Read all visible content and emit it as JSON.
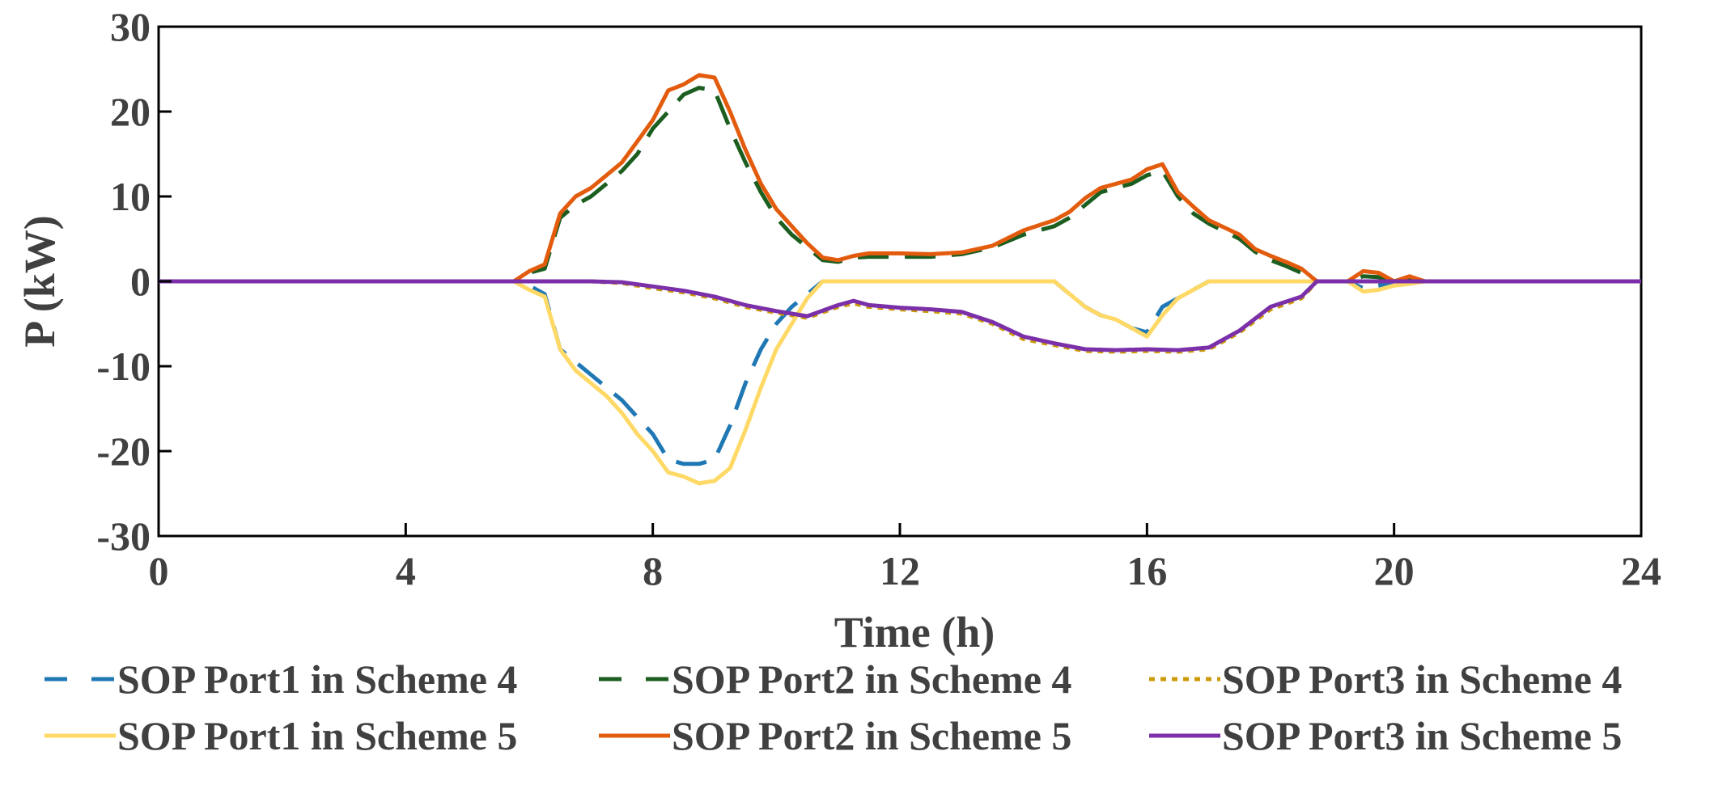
{
  "chart_data": {
    "type": "line",
    "xlabel": "Time (h)",
    "ylabel": "P (kW)",
    "xlim": [
      0,
      24
    ],
    "ylim": [
      -30,
      30
    ],
    "xticks": [
      0,
      4,
      8,
      12,
      16,
      20,
      24
    ],
    "yticks": [
      30,
      20,
      10,
      0,
      -10,
      -20,
      -30
    ],
    "xtick_labels": [
      "0",
      "4",
      "8",
      "12",
      "16",
      "20",
      "24"
    ],
    "ytick_labels": [
      "30",
      "20",
      "10",
      "0",
      "-10",
      "-20",
      "-30"
    ],
    "grid": false,
    "legend_position": "bottom",
    "series": [
      {
        "name": "SOP Port1 in Scheme 4",
        "color": "#1f78b4",
        "dash": "long-dash",
        "x": [
          0,
          5.75,
          6,
          6.25,
          6.5,
          6.75,
          7,
          7.25,
          7.5,
          7.75,
          8,
          8.25,
          8.5,
          8.75,
          9,
          9.25,
          9.5,
          9.75,
          10,
          10.25,
          10.5,
          10.75,
          11,
          12,
          13,
          14,
          14.5,
          14.75,
          15,
          15.25,
          15.5,
          15.75,
          16,
          16.25,
          16.5,
          16.75,
          17,
          18,
          19,
          19.25,
          19.5,
          19.75,
          20,
          20.25,
          20.5,
          24
        ],
        "y": [
          0,
          0,
          -0.5,
          -1.5,
          -8,
          -9.5,
          -11,
          -12.5,
          -14,
          -16,
          -18,
          -21,
          -21.5,
          -21.5,
          -21,
          -17,
          -12,
          -8,
          -5,
          -3,
          -1.5,
          0,
          0,
          0,
          0,
          0,
          0,
          -1.5,
          -3,
          -4,
          -4.5,
          -5.5,
          -6,
          -3,
          -2,
          -1,
          0,
          0,
          0,
          0,
          -0.8,
          -0.5,
          0,
          0,
          0,
          0
        ]
      },
      {
        "name": "SOP Port2 in Scheme 4",
        "color": "#1b5e20",
        "dash": "long-dash",
        "x": [
          0,
          5.75,
          6,
          6.25,
          6.5,
          6.75,
          7,
          7.25,
          7.5,
          7.75,
          8,
          8.25,
          8.5,
          8.75,
          9,
          9.25,
          9.5,
          9.75,
          10,
          10.25,
          10.5,
          10.75,
          11,
          11.25,
          11.5,
          12,
          12.5,
          13,
          13.5,
          14,
          14.5,
          14.75,
          15,
          15.25,
          15.5,
          15.75,
          16,
          16.25,
          16.5,
          16.75,
          17,
          17.5,
          17.75,
          18,
          18.25,
          18.5,
          18.75,
          19,
          19.25,
          19.5,
          19.75,
          20,
          20.25,
          20.5,
          24
        ],
        "y": [
          0,
          0,
          1,
          1.5,
          7.5,
          9,
          10,
          11.5,
          13,
          15,
          18,
          20,
          22,
          22.8,
          22.5,
          18,
          14,
          10.5,
          7.5,
          5.5,
          4,
          2.5,
          2.3,
          2.8,
          2.9,
          2.9,
          2.9,
          3.2,
          4,
          5.5,
          6.5,
          7.5,
          9,
          10.5,
          11,
          11.5,
          12.5,
          13,
          10,
          8,
          6.8,
          5,
          3.5,
          2.5,
          1.8,
          1,
          0,
          0,
          0,
          0.6,
          0.5,
          0,
          0.3,
          0,
          0
        ]
      },
      {
        "name": "SOP Port3 in Scheme 4",
        "color": "#cc9a06",
        "dash": "dotted",
        "x": [
          0,
          5.75,
          6,
          7,
          7.5,
          8,
          8.5,
          9,
          9.5,
          10,
          10.5,
          11,
          11.25,
          11.5,
          12,
          12.5,
          13,
          13.5,
          14,
          14.5,
          15,
          15.5,
          16,
          16.5,
          17,
          17.5,
          18,
          18.5,
          18.75,
          24
        ],
        "y": [
          0,
          0,
          0,
          0,
          -0.2,
          -0.8,
          -1.3,
          -2,
          -3,
          -3.7,
          -4.3,
          -3,
          -2.6,
          -3,
          -3.3,
          -3.5,
          -3.8,
          -5,
          -6.8,
          -7.5,
          -8.2,
          -8.3,
          -8.2,
          -8.3,
          -8,
          -6,
          -3.3,
          -2,
          0,
          0
        ]
      },
      {
        "name": "SOP Port1 in Scheme 5",
        "color": "#ffd966",
        "dash": "solid",
        "x": [
          0,
          5.75,
          6,
          6.25,
          6.5,
          6.75,
          7,
          7.25,
          7.5,
          7.75,
          8,
          8.25,
          8.5,
          8.75,
          9,
          9.25,
          9.5,
          9.75,
          10,
          10.25,
          10.5,
          10.75,
          11,
          12,
          13,
          14,
          14.5,
          14.75,
          15,
          15.25,
          15.5,
          15.75,
          16,
          16.25,
          16.5,
          16.75,
          17,
          18,
          19,
          19.25,
          19.5,
          19.75,
          20,
          20.25,
          20.5,
          24
        ],
        "y": [
          0,
          0,
          -1,
          -1.8,
          -8,
          -10.5,
          -12,
          -13.5,
          -15.5,
          -18,
          -20,
          -22.5,
          -23,
          -23.8,
          -23.5,
          -22,
          -17.5,
          -12.5,
          -8,
          -5,
          -2,
          0,
          0,
          0,
          0,
          0,
          0,
          -1.5,
          -3,
          -4,
          -4.5,
          -5.5,
          -6.5,
          -4,
          -2,
          -1,
          0,
          0,
          0,
          0,
          -1.2,
          -1,
          -0.5,
          -0.3,
          0,
          0
        ]
      },
      {
        "name": "SOP Port2 in Scheme 5",
        "color": "#e35c0e",
        "dash": "solid",
        "x": [
          0,
          5.75,
          6,
          6.25,
          6.5,
          6.75,
          7,
          7.25,
          7.5,
          7.75,
          8,
          8.25,
          8.5,
          8.75,
          9,
          9.25,
          9.5,
          9.75,
          10,
          10.25,
          10.5,
          10.75,
          11,
          11.25,
          11.5,
          12,
          12.5,
          13,
          13.5,
          14,
          14.5,
          14.75,
          15,
          15.25,
          15.5,
          15.75,
          16,
          16.25,
          16.5,
          16.75,
          17,
          17.5,
          17.75,
          18,
          18.25,
          18.5,
          18.75,
          19,
          19.25,
          19.5,
          19.75,
          20,
          20.25,
          20.5,
          24
        ],
        "y": [
          0,
          0,
          1.2,
          2,
          8,
          10,
          11,
          12.5,
          14,
          16.5,
          19,
          22.5,
          23.2,
          24.3,
          24,
          20,
          15.5,
          11.5,
          8.5,
          6.5,
          4.5,
          2.8,
          2.5,
          3,
          3.3,
          3.3,
          3.2,
          3.4,
          4.2,
          6,
          7.2,
          8.2,
          9.8,
          11,
          11.5,
          12,
          13.2,
          13.8,
          10.5,
          8.8,
          7.2,
          5.5,
          3.8,
          3,
          2.3,
          1.5,
          0,
          0,
          0,
          1.2,
          1,
          0,
          0.6,
          0,
          0
        ]
      },
      {
        "name": "SOP Port3 in Scheme 5",
        "color": "#7b2fa8",
        "dash": "solid",
        "x": [
          0,
          5.75,
          6,
          7,
          7.5,
          8,
          8.5,
          9,
          9.5,
          10,
          10.5,
          11,
          11.25,
          11.5,
          12,
          12.5,
          13,
          13.5,
          14,
          14.5,
          15,
          15.5,
          16,
          16.5,
          17,
          17.5,
          18,
          18.5,
          18.75,
          24
        ],
        "y": [
          0,
          0,
          0,
          0,
          -0.1,
          -0.6,
          -1.1,
          -1.8,
          -2.8,
          -3.5,
          -4.1,
          -2.8,
          -2.3,
          -2.8,
          -3.1,
          -3.3,
          -3.6,
          -4.8,
          -6.5,
          -7.3,
          -8,
          -8.1,
          -8,
          -8.1,
          -7.8,
          -5.8,
          -3,
          -1.8,
          0,
          0
        ]
      }
    ]
  }
}
